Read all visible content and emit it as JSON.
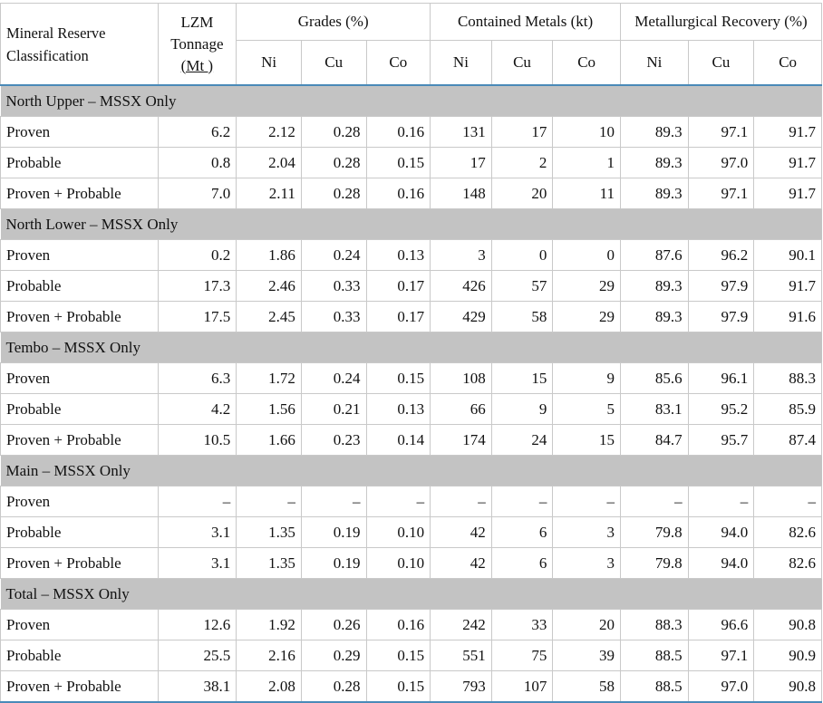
{
  "header": {
    "classification": "Mineral Reserve Classification",
    "tonnage_line1": "LZM",
    "tonnage_line2": "Tonnage",
    "tonnage_unit": "(Mt )",
    "grades": "Grades (%)",
    "contained": "Contained Metals (kt)",
    "recovery": "Metallurgical Recovery (%)",
    "sub": [
      "Ni",
      "Cu",
      "Co",
      "Ni",
      "Cu",
      "Co",
      "Ni",
      "Cu",
      "Co"
    ]
  },
  "sections": [
    {
      "title": "North Upper – MSSX Only",
      "rows": [
        {
          "label": "Proven",
          "values": [
            "6.2",
            "2.12",
            "0.28",
            "0.16",
            "131",
            "17",
            "10",
            "89.3",
            "97.1",
            "91.7"
          ]
        },
        {
          "label": "Probable",
          "values": [
            "0.8",
            "2.04",
            "0.28",
            "0.15",
            "17",
            "2",
            "1",
            "89.3",
            "97.0",
            "91.7"
          ]
        },
        {
          "label": "Proven + Probable",
          "values": [
            "7.0",
            "2.11",
            "0.28",
            "0.16",
            "148",
            "20",
            "11",
            "89.3",
            "97.1",
            "91.7"
          ]
        }
      ]
    },
    {
      "title": "North Lower – MSSX Only",
      "rows": [
        {
          "label": "Proven",
          "values": [
            "0.2",
            "1.86",
            "0.24",
            "0.13",
            "3",
            "0",
            "0",
            "87.6",
            "96.2",
            "90.1"
          ]
        },
        {
          "label": "Probable",
          "values": [
            "17.3",
            "2.46",
            "0.33",
            "0.17",
            "426",
            "57",
            "29",
            "89.3",
            "97.9",
            "91.7"
          ]
        },
        {
          "label": "Proven + Probable",
          "values": [
            "17.5",
            "2.45",
            "0.33",
            "0.17",
            "429",
            "58",
            "29",
            "89.3",
            "97.9",
            "91.6"
          ]
        }
      ]
    },
    {
      "title": "Tembo – MSSX Only",
      "rows": [
        {
          "label": "Proven",
          "values": [
            "6.3",
            "1.72",
            "0.24",
            "0.15",
            "108",
            "15",
            "9",
            "85.6",
            "96.1",
            "88.3"
          ]
        },
        {
          "label": "Probable",
          "values": [
            "4.2",
            "1.56",
            "0.21",
            "0.13",
            "66",
            "9",
            "5",
            "83.1",
            "95.2",
            "85.9"
          ]
        },
        {
          "label": "Proven + Probable",
          "values": [
            "10.5",
            "1.66",
            "0.23",
            "0.14",
            "174",
            "24",
            "15",
            "84.7",
            "95.7",
            "87.4"
          ]
        }
      ]
    },
    {
      "title": "Main – MSSX Only",
      "rows": [
        {
          "label": "Proven",
          "values": [
            "–",
            "–",
            "–",
            "–",
            "–",
            "–",
            "–",
            "–",
            "–",
            "–"
          ]
        },
        {
          "label": "Probable",
          "values": [
            "3.1",
            "1.35",
            "0.19",
            "0.10",
            "42",
            "6",
            "3",
            "79.8",
            "94.0",
            "82.6"
          ]
        },
        {
          "label": "Proven + Probable",
          "values": [
            "3.1",
            "1.35",
            "0.19",
            "0.10",
            "42",
            "6",
            "3",
            "79.8",
            "94.0",
            "82.6"
          ]
        }
      ]
    },
    {
      "title": "Total – MSSX Only",
      "rows": [
        {
          "label": "Proven",
          "values": [
            "12.6",
            "1.92",
            "0.26",
            "0.16",
            "242",
            "33",
            "20",
            "88.3",
            "96.6",
            "90.8"
          ]
        },
        {
          "label": "Probable",
          "values": [
            "25.5",
            "2.16",
            "0.29",
            "0.15",
            "551",
            "75",
            "39",
            "88.5",
            "97.1",
            "90.9"
          ]
        },
        {
          "label": "Proven + Probable",
          "values": [
            "38.1",
            "2.08",
            "0.28",
            "0.15",
            "793",
            "107",
            "58",
            "88.5",
            "97.0",
            "90.8"
          ]
        }
      ]
    }
  ]
}
